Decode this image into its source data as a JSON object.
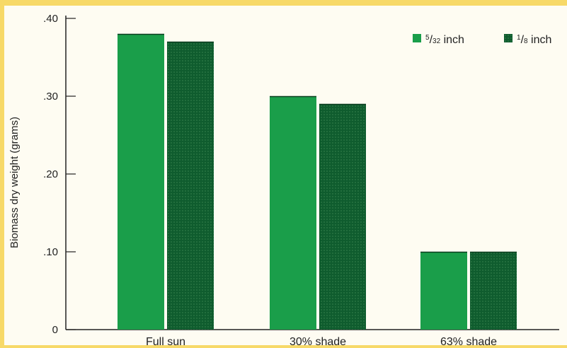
{
  "chart_data": {
    "type": "bar",
    "title": "",
    "xlabel": "",
    "ylabel": "Biomass dry weight (grams)",
    "ylim": [
      0,
      0.4
    ],
    "yticks": [
      {
        "value": 0,
        "label": "0"
      },
      {
        "value": 0.1,
        "label": ".10"
      },
      {
        "value": 0.2,
        "label": ".20"
      },
      {
        "value": 0.3,
        "label": ".30"
      },
      {
        "value": 0.4,
        "label": ".40"
      }
    ],
    "categories": [
      "Full sun",
      "30% shade",
      "63% shade"
    ],
    "series": [
      {
        "name": "5/32 inch",
        "name_num": "5",
        "name_den": "32",
        "name_unit": "inch",
        "color": "#1a9e4a",
        "values": [
          0.38,
          0.3,
          0.1
        ]
      },
      {
        "name": "1/8 inch",
        "name_num": "1",
        "name_den": "8",
        "name_unit": "inch",
        "color": "#0f5c2e",
        "values": [
          0.37,
          0.29,
          0.1
        ]
      }
    ],
    "grid": false,
    "legend_position": "top-right"
  }
}
